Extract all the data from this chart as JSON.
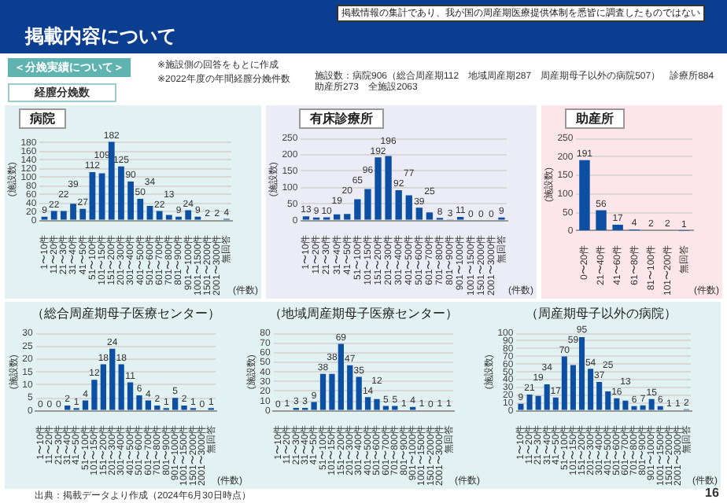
{
  "chart_data": [
    {
      "type": "bar",
      "title": "病院",
      "ylabel": "(施設数)",
      "xlabel": "(件数)",
      "categories": [
        "1〜10件",
        "11〜20件",
        "21〜30件",
        "31〜40件",
        "41〜50件",
        "51〜100件",
        "101〜150件",
        "151〜200件",
        "201〜300件",
        "301〜400件",
        "401〜500件",
        "501〜600件",
        "601〜700件",
        "701〜800件",
        "801〜900件",
        "901〜1000件",
        "1001〜1500件",
        "1501〜2000件",
        "2001〜3000件",
        "無回答"
      ],
      "values": [
        9,
        22,
        22,
        39,
        27,
        112,
        109,
        182,
        125,
        90,
        50,
        34,
        22,
        13,
        9,
        24,
        9,
        2,
        2,
        4
      ],
      "color": "#0d4fa3",
      "ylim": [
        0,
        190
      ],
      "yticks": [
        0,
        20,
        40,
        60,
        80,
        100,
        120,
        140,
        160,
        180
      ],
      "grid": "y",
      "data_labels": true,
      "annotations": [
        "掲載情報の集計であり、我が国の周産期医療提供体制を悉皆に調査したものではない",
        "掲載内容について",
        "＜分娩実績について＞",
        "※施設側の回答をもとに作成",
        "※2022年度の年間経膣分娩件数",
        "経膣分娩数",
        "施設数：病院906（総合周産期112　地域周産期287　周産期母子以外の病院507）　診療所884　助産所273　全施設2063",
        "出典：掲載データより作成（2024年6月30日時点）",
        "16"
      ]
    },
    {
      "type": "bar",
      "title": "有床診療所",
      "ylabel": "(施設数)",
      "xlabel": "(件数)",
      "categories": [
        "1〜10件",
        "11〜20件",
        "21〜30件",
        "31〜40件",
        "41〜50件",
        "51〜100件",
        "101〜150件",
        "151〜200件",
        "201〜300件",
        "301〜400件",
        "401〜500件",
        "501〜600件",
        "601〜700件",
        "701〜800件",
        "801〜900件",
        "901〜1000件",
        "1001〜1500件",
        "1501〜2000件",
        "2001〜3000件",
        "無回答"
      ],
      "values": [
        13,
        9,
        10,
        19,
        20,
        65,
        96,
        192,
        196,
        92,
        77,
        39,
        25,
        8,
        3,
        11,
        0,
        0,
        0,
        9
      ],
      "color": "#0d4fa3",
      "ylim": [
        0,
        250
      ],
      "yticks": [
        0,
        50,
        100,
        150,
        200,
        250
      ],
      "grid": "y",
      "data_labels": true
    },
    {
      "type": "bar",
      "title": "助産所",
      "ylabel": "(施設数)",
      "xlabel": "(件数)",
      "categories": [
        "0〜20件",
        "21〜40件",
        "41〜60件",
        "61〜80件",
        "81〜100件",
        "101〜200件",
        "無回答"
      ],
      "values": [
        191,
        56,
        17,
        4,
        2,
        2,
        1
      ],
      "color": "#0d4fa3",
      "ylim": [
        0,
        250
      ],
      "yticks": [
        0,
        50,
        100,
        150,
        200,
        250
      ],
      "grid": "y",
      "data_labels": true
    },
    {
      "type": "bar",
      "title": "（総合周産期母子医療センター）",
      "ylabel": "(施設数)",
      "xlabel": "(件数)",
      "categories": [
        "1〜10件",
        "11〜20件",
        "21〜30件",
        "31〜40件",
        "41〜50件",
        "51〜100件",
        "101〜150件",
        "151〜200件",
        "201〜300件",
        "301〜400件",
        "401〜500件",
        "501〜600件",
        "601〜700件",
        "701〜800件",
        "801〜900件",
        "901〜1000件",
        "1001〜1500件",
        "1501〜2000件",
        "2001〜3000件",
        "無回答"
      ],
      "values": [
        0,
        0,
        0,
        2,
        1,
        4,
        12,
        18,
        24,
        18,
        11,
        6,
        4,
        2,
        1,
        5,
        2,
        1,
        0,
        1
      ],
      "color": "#0d4fa3",
      "ylim": [
        0,
        30
      ],
      "yticks": [
        0,
        5,
        10,
        15,
        20,
        25,
        30
      ],
      "grid": "y",
      "data_labels": true
    },
    {
      "type": "bar",
      "title": "（地域周産期母子医療センター）",
      "ylabel": "(施設数)",
      "xlabel": "(件数)",
      "categories": [
        "1〜10件",
        "11〜20件",
        "21〜30件",
        "31〜40件",
        "41〜50件",
        "51〜100件",
        "101〜150件",
        "151〜200件",
        "201〜300件",
        "301〜400件",
        "401〜500件",
        "501〜600件",
        "601〜700件",
        "701〜800件",
        "801〜900件",
        "901〜1000件",
        "1001〜1500件",
        "1501〜2000件",
        "2001〜3000件",
        "無回答"
      ],
      "values": [
        0,
        1,
        3,
        3,
        9,
        38,
        38,
        69,
        47,
        35,
        14,
        12,
        5,
        5,
        1,
        4,
        1,
        0,
        1,
        1
      ],
      "color": "#0d4fa3",
      "ylim": [
        0,
        80
      ],
      "yticks": [
        0,
        10,
        20,
        30,
        40,
        50,
        60,
        70,
        80
      ],
      "grid": "y",
      "data_labels": true
    },
    {
      "type": "bar",
      "title": "（周産期母子以外の病院）",
      "ylabel": "(施設数)",
      "xlabel": "(件数)",
      "categories": [
        "1〜10件",
        "11〜20件",
        "21〜30件",
        "31〜40件",
        "41〜50件",
        "51〜100件",
        "101〜150件",
        "151〜200件",
        "201〜300件",
        "301〜400件",
        "401〜500件",
        "501〜600件",
        "601〜700件",
        "701〜800件",
        "801〜900件",
        "901〜1000件",
        "1001〜1500件",
        "1501〜2000件",
        "2001〜3000件",
        "無回答"
      ],
      "values": [
        9,
        21,
        19,
        34,
        17,
        70,
        59,
        95,
        54,
        37,
        25,
        16,
        13,
        6,
        7,
        15,
        6,
        1,
        1,
        2
      ],
      "color": "#0d4fa3",
      "ylim": [
        0,
        100
      ],
      "yticks": [
        0,
        10,
        20,
        30,
        40,
        50,
        60,
        70,
        80,
        90,
        100
      ],
      "grid": "y",
      "data_labels": true
    }
  ]
}
